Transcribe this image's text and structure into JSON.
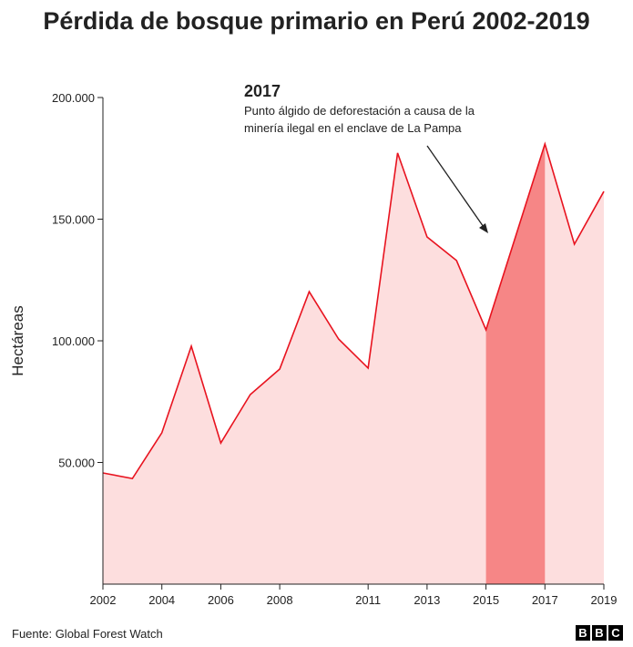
{
  "title": "Pérdida de bosque primario en Perú 2002-2019",
  "source": "Fuente: Global Forest Watch",
  "logo": [
    "B",
    "B",
    "C"
  ],
  "chart_data": {
    "type": "area",
    "title": "Pérdida de bosque primario en Perú 2002-2019",
    "ylabel": "Hectáreas",
    "xlabel": "",
    "x": [
      2002,
      2003,
      2004,
      2005,
      2006,
      2007,
      2008,
      2009,
      2010,
      2011,
      2012,
      2013,
      2014,
      2015,
      2016,
      2017,
      2018,
      2019
    ],
    "values": [
      45700,
      43400,
      62200,
      97800,
      58000,
      77900,
      88400,
      120200,
      100700,
      88800,
      177200,
      142700,
      133000,
      104500,
      142700,
      180900,
      139700,
      161400
    ],
    "xlim": [
      2002,
      2019
    ],
    "ylim": [
      0,
      200000
    ],
    "xticks": [
      2002,
      2004,
      2006,
      2008,
      2011,
      2013,
      2015,
      2017,
      2019
    ],
    "yticks": [
      {
        "value": 50000,
        "label": "50.000"
      },
      {
        "value": 100000,
        "label": "100.000"
      },
      {
        "value": 150000,
        "label": "150.000"
      },
      {
        "value": 200000,
        "label": "200.000"
      }
    ],
    "highlight_range": [
      2015,
      2017
    ],
    "grid": false,
    "colors": {
      "line": "#e8131f",
      "fill": "#fddede",
      "highlight": "#f68686",
      "axis": "#222222"
    },
    "annotation": {
      "title": "2017",
      "lines": [
        "Punto álgido de deforestación a causa de la",
        "minería ilegal en el enclave de La Pampa"
      ]
    }
  }
}
